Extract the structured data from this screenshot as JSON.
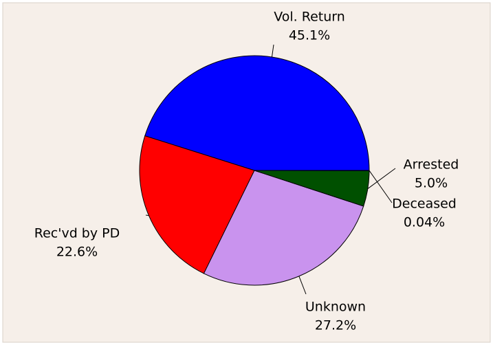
{
  "chart_data": {
    "type": "pie",
    "categories": [
      "Vol. Return",
      "Rec'vd by PD",
      "Unknown",
      "Arrested",
      "Deceased"
    ],
    "values": [
      45.1,
      22.6,
      27.2,
      5.0,
      0.04
    ],
    "value_labels": [
      "45.1%",
      "22.6%",
      "27.2%",
      "5.0%",
      "0.04%"
    ],
    "colors": [
      "#0000ff",
      "#ff0000",
      "#c993ee",
      "#005000",
      "#ffffff"
    ]
  }
}
